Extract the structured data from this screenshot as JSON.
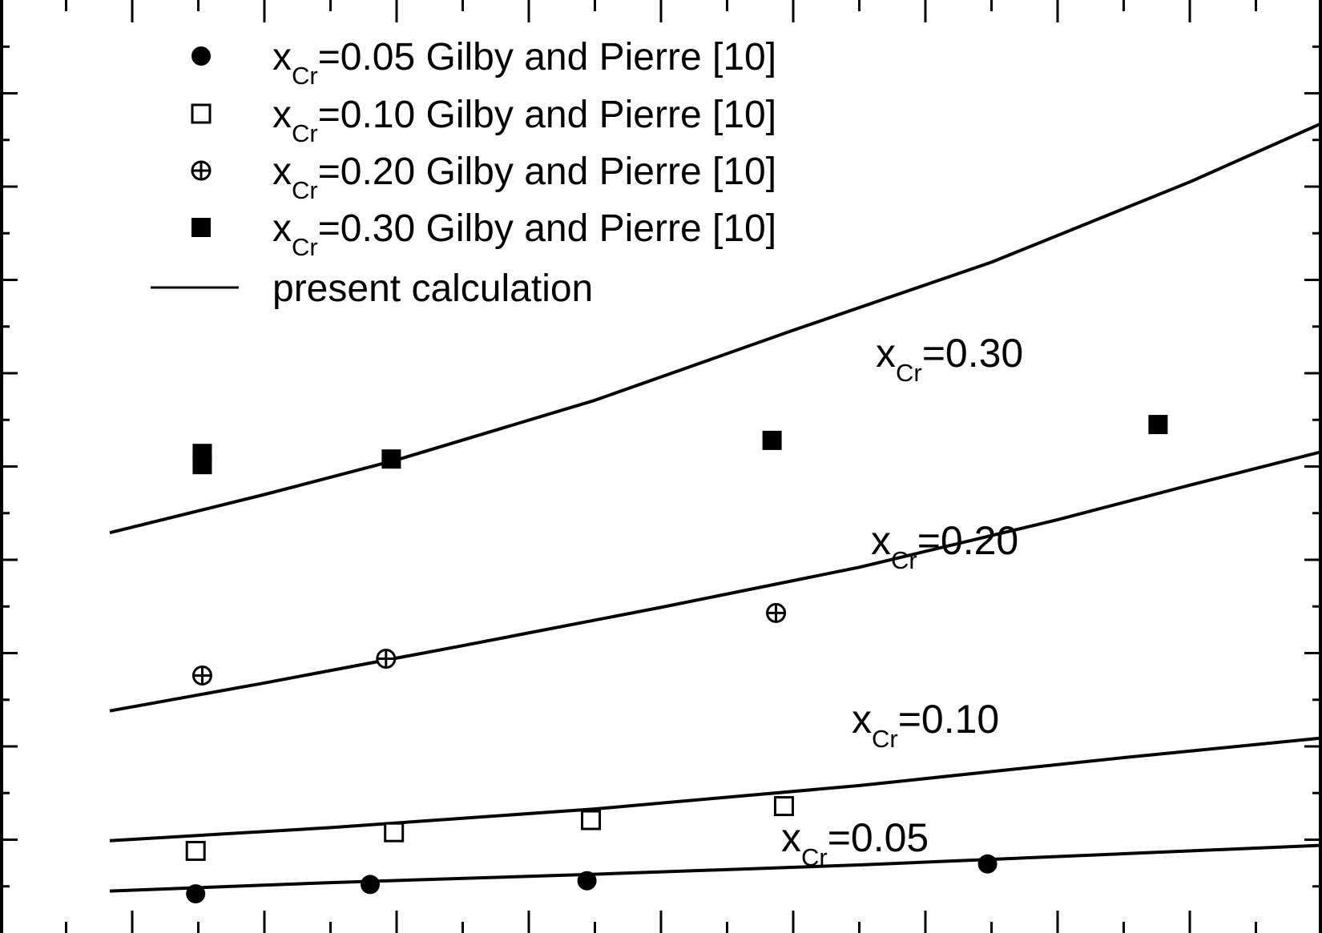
{
  "chart_data": {
    "type": "scatter",
    "xlim": [
      0,
      1
    ],
    "ylim": [
      0,
      1
    ],
    "grid": false,
    "legend_position": "top-left",
    "x_ticks": [
      0.05,
      0.1,
      0.15,
      0.2,
      0.25,
      0.3,
      0.35,
      0.4,
      0.45,
      0.5,
      0.55,
      0.6,
      0.65,
      0.7,
      0.75,
      0.8,
      0.85,
      0.9,
      0.95
    ],
    "y_ticks": [
      0.05,
      0.1,
      0.15,
      0.2,
      0.25,
      0.3,
      0.35,
      0.4,
      0.45,
      0.5,
      0.55,
      0.6,
      0.65,
      0.7,
      0.75,
      0.8,
      0.85,
      0.9,
      0.95
    ],
    "series": [
      {
        "name": "x_Cr=0.05 Gilby and Pierre [10]",
        "sub": "Cr",
        "lead": "x",
        "rest": "=0.05 Gilby and Pierre [10]",
        "marker": "filled-circle",
        "x": [
          0.148,
          0.28,
          0.444,
          0.747
        ],
        "y": [
          0.042,
          0.052,
          0.056,
          0.074
        ]
      },
      {
        "name": "x_Cr=0.10 Gilby and Pierre [10]",
        "sub": "Cr",
        "lead": "x",
        "rest": "=0.10 Gilby and Pierre [10]",
        "marker": "open-square",
        "x": [
          0.148,
          0.298,
          0.447,
          0.593
        ],
        "y": [
          0.088,
          0.108,
          0.121,
          0.136
        ]
      },
      {
        "name": "x_Cr=0.20 Gilby and Pierre [10]",
        "sub": "Cr",
        "lead": "x",
        "rest": "=0.20 Gilby and Pierre [10]",
        "marker": "circle-plus",
        "x": [
          0.153,
          0.292,
          0.587
        ],
        "y": [
          0.276,
          0.294,
          0.343
        ]
      },
      {
        "name": "x_Cr=0.30 Gilby and Pierre [10]",
        "sub": "Cr",
        "lead": "x",
        "rest": "=0.30 Gilby and Pierre [10]",
        "marker": "filled-square",
        "x": [
          0.153,
          0.153,
          0.296,
          0.584,
          0.876
        ],
        "y": [
          0.502,
          0.514,
          0.508,
          0.528,
          0.545
        ]
      }
    ],
    "curves": [
      {
        "label_lead": "x",
        "label_sub": "Cr",
        "label_rest": "=0.05",
        "x": [
          0.083,
          0.25,
          0.45,
          0.65,
          0.85,
          1.0
        ],
        "y": [
          0.045,
          0.054,
          0.063,
          0.073,
          0.085,
          0.094
        ]
      },
      {
        "label_lead": "x",
        "label_sub": "Cr",
        "label_rest": "=0.10",
        "x": [
          0.083,
          0.25,
          0.45,
          0.65,
          0.85,
          1.0
        ],
        "y": [
          0.099,
          0.113,
          0.133,
          0.158,
          0.188,
          0.209
        ]
      },
      {
        "label_lead": "x",
        "label_sub": "Cr",
        "label_rest": "=0.20",
        "x": [
          0.083,
          0.2,
          0.35,
          0.5,
          0.65,
          0.8,
          0.9,
          1.0
        ],
        "y": [
          0.238,
          0.268,
          0.308,
          0.349,
          0.392,
          0.443,
          0.48,
          0.516
        ]
      },
      {
        "label_lead": "x",
        "label_sub": "Cr",
        "label_rest": "=0.30",
        "x": [
          0.083,
          0.2,
          0.3,
          0.45,
          0.6,
          0.75,
          0.9,
          1.0
        ],
        "y": [
          0.429,
          0.47,
          0.507,
          0.571,
          0.646,
          0.719,
          0.805,
          0.868
        ]
      }
    ],
    "curve_legend": "present calculation"
  }
}
